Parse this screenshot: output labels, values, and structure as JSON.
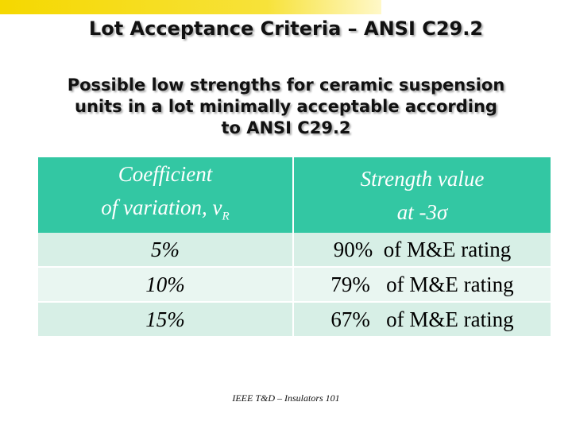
{
  "slide": {
    "title": "Lot Acceptance Criteria – ANSI C29.2",
    "subtitle": [
      "Possible low strengths for ceramic suspension",
      "units in a lot minimally acceptable according",
      "to ANSI C29.2"
    ],
    "table": {
      "header": [
        [
          "Coefficient",
          "of variation, v",
          "R"
        ],
        [
          "Strength value",
          "at -3σ"
        ]
      ],
      "rows": [
        [
          "5%",
          "90%  of M&E rating"
        ],
        [
          "10%",
          "79%   of M&E rating"
        ],
        [
          "15%",
          "67%   of M&E rating"
        ]
      ]
    },
    "footer": "IEEE T&D – Insulators 101"
  }
}
